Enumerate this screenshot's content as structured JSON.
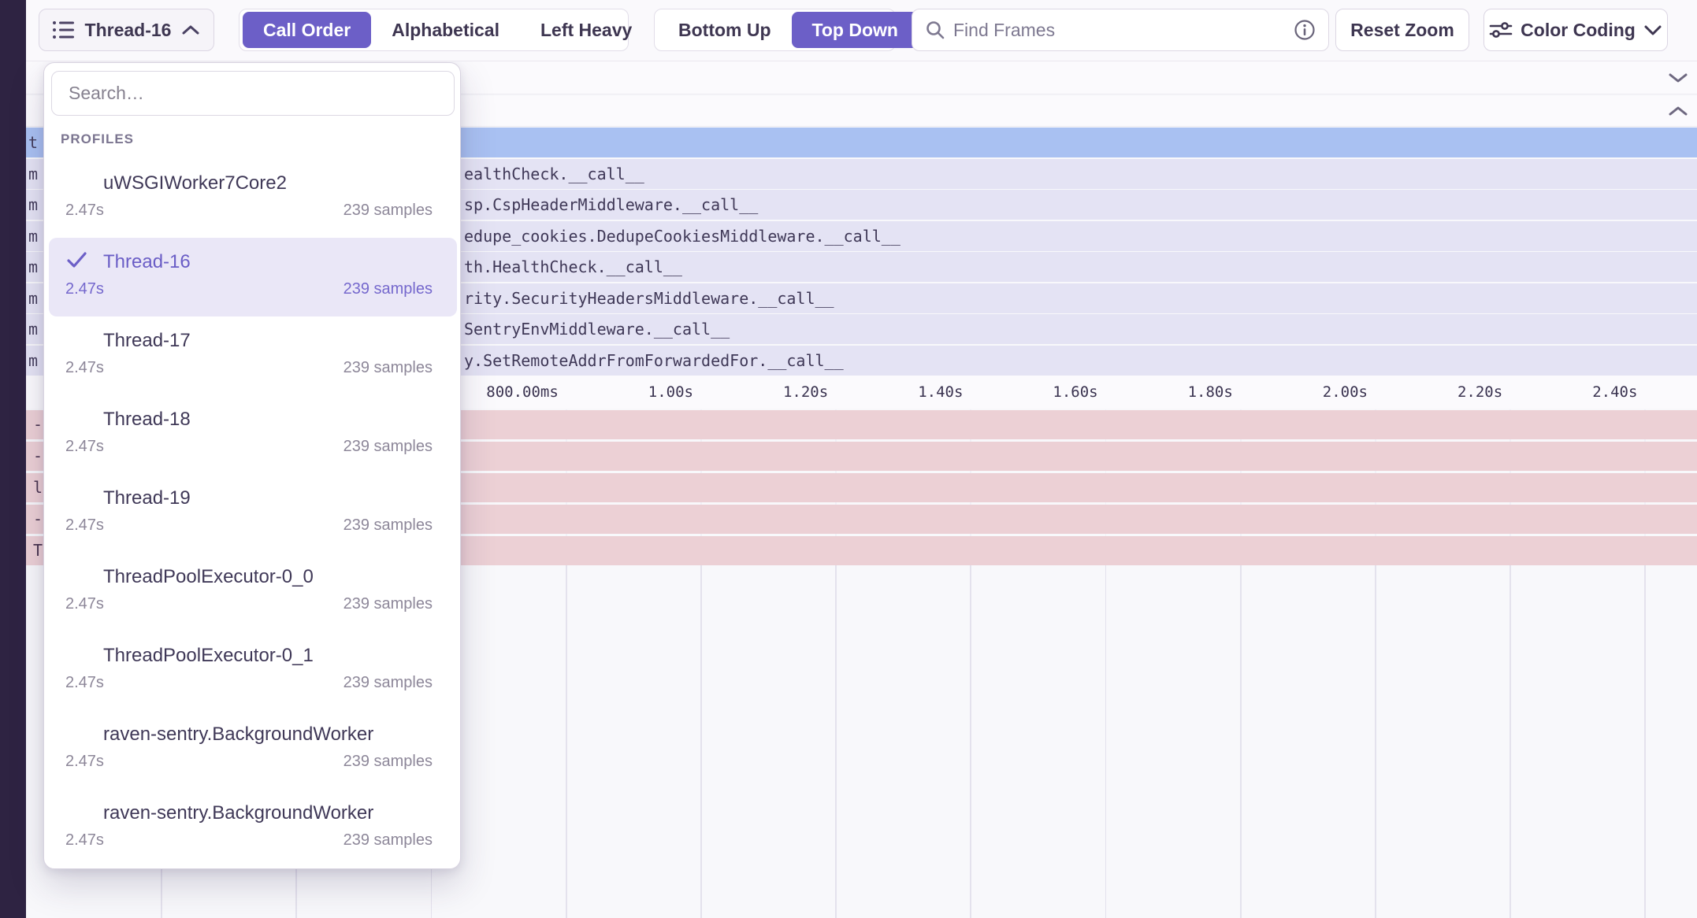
{
  "toolbar": {
    "thread_selector": {
      "label": "Thread-16"
    },
    "sort_tabs": {
      "options": [
        "Call Order",
        "Alphabetical",
        "Left Heavy"
      ],
      "selected": "Call Order"
    },
    "direction_tabs": {
      "options": [
        "Bottom Up",
        "Top Down"
      ],
      "selected": "Top Down"
    },
    "find_frames": {
      "placeholder": "Find Frames"
    },
    "reset_zoom_label": "Reset Zoom",
    "color_coding_label": "Color Coding"
  },
  "thread_dropdown": {
    "search_placeholder": "Search…",
    "section_label": "PROFILES",
    "items": [
      {
        "name": "uWSGIWorker7Core2",
        "duration": "2.47s",
        "samples": "239 samples",
        "selected": false
      },
      {
        "name": "Thread-16",
        "duration": "2.47s",
        "samples": "239 samples",
        "selected": true
      },
      {
        "name": "Thread-17",
        "duration": "2.47s",
        "samples": "239 samples",
        "selected": false
      },
      {
        "name": "Thread-18",
        "duration": "2.47s",
        "samples": "239 samples",
        "selected": false
      },
      {
        "name": "Thread-19",
        "duration": "2.47s",
        "samples": "239 samples",
        "selected": false
      },
      {
        "name": "ThreadPoolExecutor-0_0",
        "duration": "2.47s",
        "samples": "239 samples",
        "selected": false
      },
      {
        "name": "ThreadPoolExecutor-0_1",
        "duration": "2.47s",
        "samples": "239 samples",
        "selected": false
      },
      {
        "name": "raven-sentry.BackgroundWorker",
        "duration": "2.47s",
        "samples": "239 samples",
        "selected": false
      },
      {
        "name": "raven-sentry.BackgroundWorker",
        "duration": "2.47s",
        "samples": "239 samples",
        "selected": false
      }
    ]
  },
  "flamegraph": {
    "selected_frame": {
      "sliver": "t"
    },
    "frame_rows": [
      {
        "sliver": "m",
        "text": "ealthCheck.__call__"
      },
      {
        "sliver": "m",
        "text": "sp.CspHeaderMiddleware.__call__"
      },
      {
        "sliver": "m",
        "text": "edupe_cookies.DedupeCookiesMiddleware.__call__"
      },
      {
        "sliver": "m",
        "text": "th.HealthCheck.__call__"
      },
      {
        "sliver": "m",
        "text": "rity.SecurityHeadersMiddleware.__call__"
      },
      {
        "sliver": "m",
        "text": "SentryEnvMiddleware.__call__"
      },
      {
        "sliver": "m",
        "text": "y.SetRemoteAddrFromForwardedFor.__call__"
      }
    ],
    "axis_ticks": [
      {
        "label": "800.00ms",
        "k": 4
      },
      {
        "label": "1.00s",
        "k": 5
      },
      {
        "label": "1.20s",
        "k": 6
      },
      {
        "label": "1.40s",
        "k": 7
      },
      {
        "label": "1.60s",
        "k": 8
      },
      {
        "label": "1.80s",
        "k": 9
      },
      {
        "label": "2.00s",
        "k": 10
      },
      {
        "label": "2.20s",
        "k": 11
      },
      {
        "label": "2.40s",
        "k": 12
      }
    ],
    "system_rows": [
      {
        "sliver": "-"
      },
      {
        "sliver": "-"
      },
      {
        "sliver": "l"
      },
      {
        "sliver": "-"
      },
      {
        "sliver": "T"
      }
    ],
    "colors": {
      "accent": "#6c5fc7",
      "selected_row": "#a9c1f2",
      "app_row": "#e4e3f4",
      "system_row": "#ecd0d5",
      "dark_rail": "#2e2342"
    }
  }
}
